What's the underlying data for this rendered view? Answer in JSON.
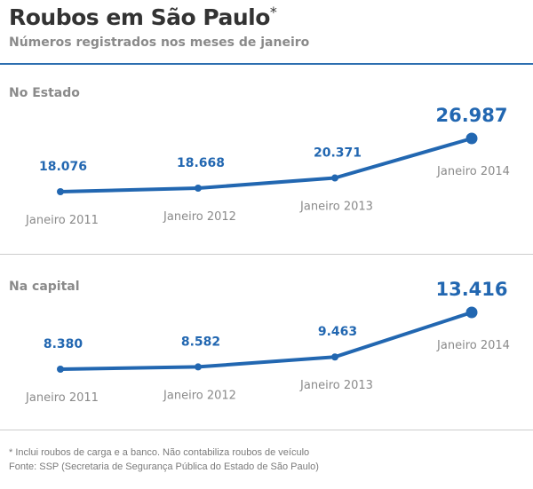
{
  "header": {
    "title": "Roubos em São Paulo",
    "title_mark": "*",
    "subtitle": "Números registrados nos meses de janeiro"
  },
  "colors": {
    "line": "#2267b1",
    "value": "#2267b1",
    "category": "#8a8a8a",
    "rule": "#2c6eb0"
  },
  "chart_data": [
    {
      "type": "line",
      "panel_label": "No Estado",
      "categories": [
        "Janeiro 2011",
        "Janeiro 2012",
        "Janeiro 2013",
        "Janeiro 2014"
      ],
      "values": [
        18076,
        18668,
        20371,
        26987
      ],
      "value_labels": [
        "18.076",
        "18.668",
        "20.371",
        "26.987"
      ]
    },
    {
      "type": "line",
      "panel_label": "Na capital",
      "categories": [
        "Janeiro 2011",
        "Janeiro 2012",
        "Janeiro 2013",
        "Janeiro 2014"
      ],
      "values": [
        8380,
        8582,
        9463,
        13416
      ],
      "value_labels": [
        "8.380",
        "8.582",
        "9.463",
        "13.416"
      ]
    }
  ],
  "footer": {
    "note": "* Inclui roubos de carga e a banco. Não contabiliza roubos de veículo",
    "source": "Fonte: SSP (Secretaria de Segurança Pública do Estado de São Paulo)"
  }
}
